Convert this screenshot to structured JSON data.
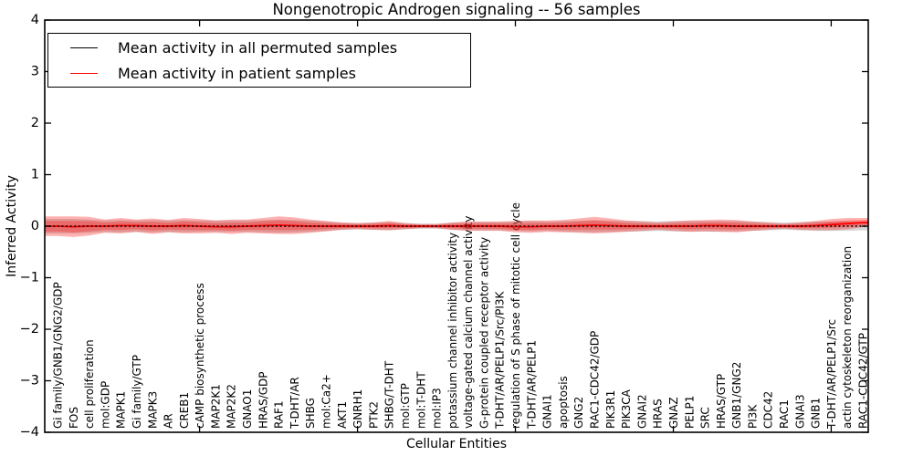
{
  "title": "Nongenotropic Androgen signaling -- 56 samples",
  "legend": {
    "items": [
      {
        "label": "Mean activity in all permuted samples",
        "color": "#000000",
        "style": "dashed-in-plot"
      },
      {
        "label": "Mean activity in patient samples",
        "color": "#ff0000",
        "style": "solid"
      }
    ]
  },
  "chart_data": {
    "type": "line",
    "title": "Nongenotropic Androgen signaling -- 56 samples",
    "xlabel": "Cellular Entities",
    "ylabel": "Inferred Activity",
    "ylim": [
      -4,
      4
    ],
    "yticks": [
      4,
      3,
      2,
      1,
      0,
      -1,
      -2,
      -3,
      -4
    ],
    "ytick_labels": [
      "4",
      "3",
      "2",
      "1",
      "0",
      "−1",
      "−2",
      "−3",
      "−4"
    ],
    "xtick_indices": [
      9,
      19,
      29,
      39,
      49
    ],
    "grid": false,
    "legend_position": "upper left",
    "categories": [
      "Gi family/GNB1/GNG2/GDP",
      "FOS",
      "cell proliferation",
      "mol:GDP",
      "MAPK1",
      "Gi family/GTP",
      "MAPK3",
      "AR",
      "CREB1",
      "cAMP biosynthetic process",
      "MAP2K1",
      "MAP2K2",
      "GNAO1",
      "HRAS/GDP",
      "RAF1",
      "T-DHT/AR",
      "SHBG",
      "mol:Ca2+",
      "AKT1",
      "GNRH1",
      "PTK2",
      "SHBG/T-DHT",
      "mol:GTP",
      "mol:T-DHT",
      "mol:IP3",
      "potassium channel inhibitor activity",
      "voltage-gated calcium channel activity",
      "G-protein coupled receptor activity",
      "T-DHT/AR/PELP1/Src/PI3K",
      "regulation of S phase of mitotic cell cycle",
      "T-DHT/AR/PELP1",
      "GNAI1",
      "apoptosis",
      "GNG2",
      "RAC1-CDC42/GDP",
      "PIK3R1",
      "PIK3CA",
      "GNAI2",
      "HRAS",
      "GNAZ",
      "PELP1",
      "SRC",
      "HRAS/GTP",
      "GNB1/GNG2",
      "PI3K",
      "CDC42",
      "RAC1",
      "GNAI3",
      "GNB1",
      "T-DHT/AR/PELP1/Src",
      "actin cytoskeleton reorganization",
      "RAC1-CDC42/GTP"
    ],
    "series": [
      {
        "name": "Mean activity in all permuted samples",
        "color": "#000000",
        "style": "dashed",
        "values": 0
      },
      {
        "name": "Mean activity in patient samples",
        "color": "#ff0000",
        "style": "solid",
        "values": [
          0,
          -0.01,
          0,
          0,
          0.01,
          0.01,
          0,
          0,
          0.01,
          0,
          -0.01,
          -0.01,
          0,
          0.01,
          0.02,
          0.01,
          0,
          0,
          0,
          0,
          0,
          0.01,
          0,
          0,
          0,
          0,
          0,
          0,
          0,
          -0.01,
          -0.01,
          0,
          0,
          0.01,
          0.02,
          0.01,
          0,
          0,
          0,
          0,
          0,
          0.01,
          0.01,
          0,
          0,
          0,
          0,
          0,
          0.01,
          0.03,
          0.05,
          0.07
        ]
      }
    ],
    "bands": [
      {
        "name": "permuted-std-band",
        "center_series": 0,
        "color": "#999999",
        "opacity": 0.4,
        "scale": 1,
        "half_widths": [
          0.14,
          0.14,
          0.13,
          0.11,
          0.12,
          0.11,
          0.12,
          0.11,
          0.12,
          0.11,
          0.11,
          0.11,
          0.11,
          0.12,
          0.13,
          0.12,
          0.11,
          0.09,
          0.07,
          0.06,
          0.07,
          0.08,
          0.06,
          0.05,
          0.05,
          0.07,
          0.08,
          0.08,
          0.08,
          0.09,
          0.1,
          0.09,
          0.1,
          0.11,
          0.12,
          0.11,
          0.1,
          0.1,
          0.09,
          0.1,
          0.1,
          0.1,
          0.1,
          0.1,
          0.09,
          0.08,
          0.07,
          0.08,
          0.09,
          0.09,
          0.09,
          0.08
        ]
      },
      {
        "name": "patient-std-band-outer",
        "center_series": 1,
        "color": "#ff0000",
        "opacity": 0.3,
        "scale": 1,
        "half_widths": [
          0.19,
          0.2,
          0.18,
          0.13,
          0.15,
          0.12,
          0.15,
          0.12,
          0.15,
          0.14,
          0.12,
          0.14,
          0.13,
          0.15,
          0.17,
          0.16,
          0.13,
          0.1,
          0.07,
          0.06,
          0.07,
          0.09,
          0.06,
          0.04,
          0.04,
          0.07,
          0.09,
          0.09,
          0.09,
          0.11,
          0.12,
          0.11,
          0.12,
          0.14,
          0.16,
          0.14,
          0.11,
          0.09,
          0.07,
          0.09,
          0.11,
          0.11,
          0.12,
          0.12,
          0.09,
          0.07,
          0.05,
          0.07,
          0.09,
          0.11,
          0.11,
          0.09
        ]
      },
      {
        "name": "patient-std-band-inner",
        "center_series": 1,
        "color": "#ff0000",
        "opacity": 0.28,
        "scale": 0.55,
        "half_widths": [
          0.19,
          0.2,
          0.18,
          0.13,
          0.15,
          0.12,
          0.15,
          0.12,
          0.15,
          0.14,
          0.12,
          0.14,
          0.13,
          0.15,
          0.17,
          0.16,
          0.13,
          0.1,
          0.07,
          0.06,
          0.07,
          0.09,
          0.06,
          0.04,
          0.04,
          0.07,
          0.09,
          0.09,
          0.09,
          0.11,
          0.12,
          0.11,
          0.12,
          0.14,
          0.16,
          0.14,
          0.11,
          0.09,
          0.07,
          0.09,
          0.11,
          0.11,
          0.12,
          0.12,
          0.09,
          0.07,
          0.05,
          0.07,
          0.09,
          0.11,
          0.11,
          0.09
        ]
      }
    ]
  }
}
